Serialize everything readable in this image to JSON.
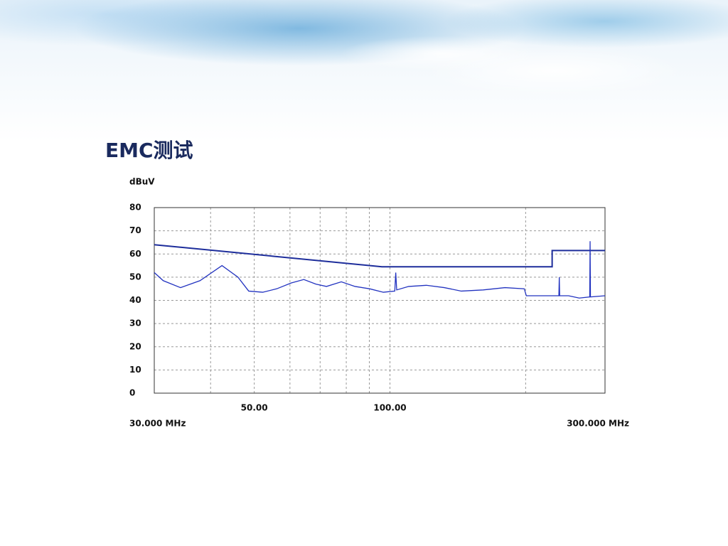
{
  "chart_data": {
    "type": "line",
    "title": "EMC测试",
    "y_label": "dBuV",
    "x_scale": "log",
    "xlim": [
      30,
      300
    ],
    "ylim": [
      0,
      80
    ],
    "yticks": [
      0,
      10,
      20,
      30,
      40,
      50,
      60,
      70,
      80
    ],
    "xticks": [
      {
        "value": 30,
        "label": "30.000 MHz"
      },
      {
        "value": 50,
        "label": "50.00"
      },
      {
        "value": 100,
        "label": "100.00"
      },
      {
        "value": 300,
        "label": "300.000 MHz"
      }
    ],
    "xgrid": [
      40,
      50,
      60,
      70,
      80,
      90,
      100,
      200
    ],
    "grid": true,
    "series": [
      {
        "color": "#1d2d9b",
        "x": [
          30,
          96,
          229,
          229,
          300
        ],
        "values": [
          64,
          54.5,
          54.5,
          61.5,
          61.5
        ]
      },
      {
        "color": "#2233c0",
        "x": [
          30,
          31.4,
          34.3,
          37.9,
          42.4,
          46,
          48.6,
          52.2,
          56.1,
          60.4,
          64.4,
          68.5,
          72.3,
          78,
          83.7,
          90.1,
          96.7,
          102.5,
          103,
          103.5,
          110,
          120.4,
          132,
          144,
          161,
          180,
          198.6,
          200.7,
          224,
          237,
          237.5,
          238,
          249,
          263,
          277.5,
          278,
          278.5,
          300
        ],
        "values": [
          52,
          48.5,
          45.5,
          48.5,
          55,
          50,
          44,
          43.5,
          45,
          47.5,
          49,
          47,
          46,
          48,
          46,
          45,
          43.5,
          44,
          52,
          44.5,
          46,
          46.5,
          45.5,
          44,
          44.5,
          45.5,
          45,
          42,
          42,
          42,
          50,
          42,
          42,
          41,
          41.5,
          65.5,
          41.5,
          42
        ]
      }
    ]
  }
}
